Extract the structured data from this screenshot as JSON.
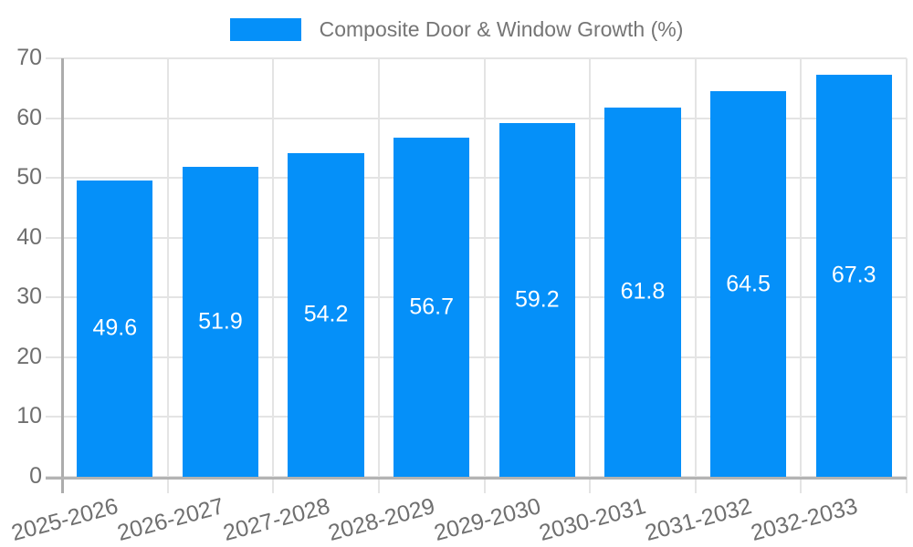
{
  "legend": {
    "label": "Composite Door & Window Growth (%)"
  },
  "chart_data": {
    "type": "bar",
    "title": "Composite Door & Window Growth (%)",
    "categories": [
      "2025-2026",
      "2026-2027",
      "2027-2028",
      "2028-2029",
      "2029-2030",
      "2030-2031",
      "2031-2032",
      "2032-2033"
    ],
    "values": [
      49.6,
      51.9,
      54.2,
      56.7,
      59.2,
      61.8,
      64.5,
      67.3
    ],
    "value_labels": [
      "49.6",
      "51.9",
      "54.2",
      "56.7",
      "59.2",
      "61.8",
      "64.5",
      "67.3"
    ],
    "xlabel": "",
    "ylabel": "",
    "ylim": [
      0,
      70
    ],
    "yticks": [
      0,
      10,
      20,
      30,
      40,
      50,
      60,
      70
    ],
    "grid": true,
    "legend_position": "top-center",
    "x_label_rotation_deg": -15,
    "colors": {
      "bar": "#0590F9",
      "grid": "#e4e4e4",
      "axis": "#b0b0b0",
      "tick_label": "#6f6f6f",
      "legend_text": "#757575",
      "value_label": "#ffffff",
      "background": "#ffffff"
    }
  }
}
